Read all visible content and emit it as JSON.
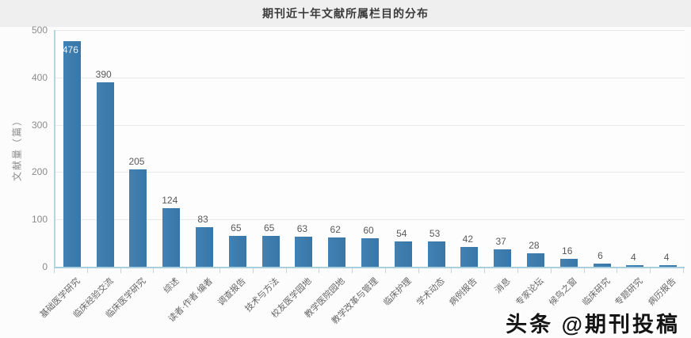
{
  "page": {
    "watermark": "头条 @期刊投稿"
  },
  "chart_data": {
    "type": "bar",
    "title": "期刊近十年文献所属栏目的分布",
    "xlabel": "",
    "ylabel": "文献量（篇）",
    "categories": [
      "基础医学研究",
      "临床经验交流",
      "临床医学研究",
      "综述",
      "读者·作者·编者",
      "调查报告",
      "技术与方法",
      "校友医学园地",
      "教学医院园地",
      "教学改革与管理",
      "临床护理",
      "学术动态",
      "病例报告",
      "消息",
      "专家论坛",
      "候鸟之窗",
      "临床研究",
      "专题研究",
      "病历报告"
    ],
    "values": [
      476,
      390,
      205,
      124,
      83,
      65,
      65,
      63,
      62,
      60,
      54,
      53,
      42,
      37,
      28,
      16,
      6,
      4,
      4
    ],
    "ylim": [
      0,
      500
    ],
    "ytick_interval": 100,
    "grid": true,
    "legend": "none",
    "bar_color": "#4181b3",
    "axis_line_color": "#a9cfdc",
    "grid_color": "#e8e8e8",
    "value_label_color": "#595959",
    "first_value_label_inside": true
  }
}
